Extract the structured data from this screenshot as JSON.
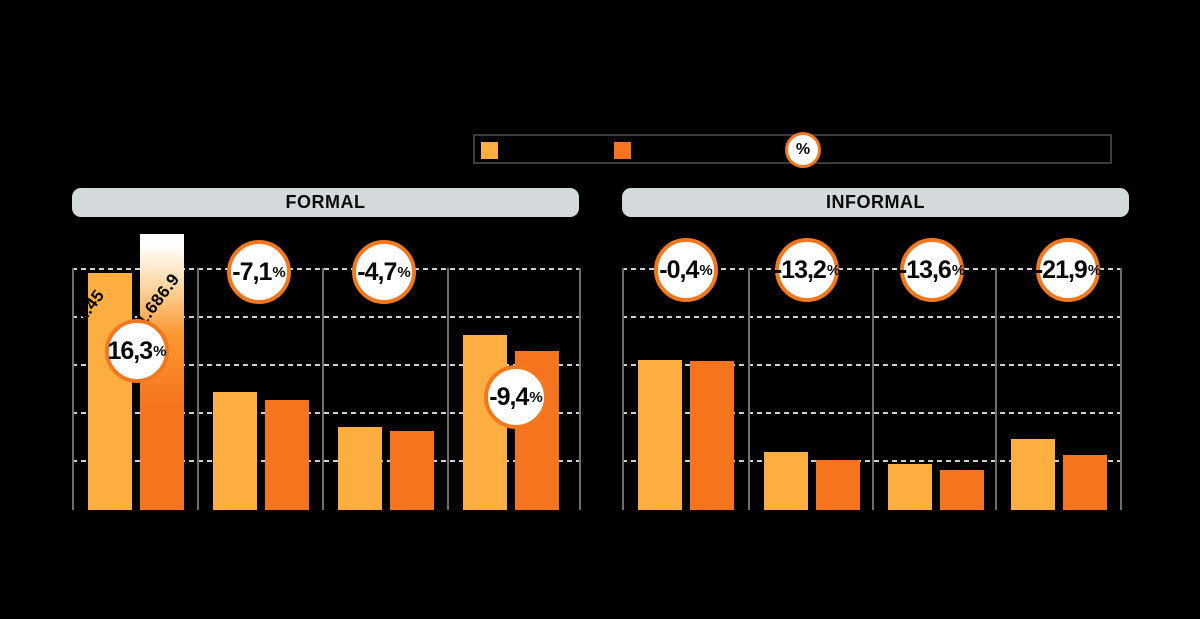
{
  "page": {
    "background": "#000000"
  },
  "legend": {
    "percent_symbol": "%",
    "swatches": [
      {
        "name": "series-1-light",
        "color": "#FDAE40"
      },
      {
        "name": "series-2-dark",
        "color": "#F6741E"
      }
    ]
  },
  "sections": [
    {
      "title": "FORMAL"
    },
    {
      "title": "INFORMAL"
    }
  ],
  "colors": {
    "light_bar": "#FDAE40",
    "dark_bar": "#F6741E",
    "badge_border": "#F1781F",
    "header_bg": "#D4DADB",
    "gridline": "#CCD0D0",
    "separator": "#6E6E6E",
    "legend_border": "#3B3B3B"
  },
  "chart_data": [
    {
      "type": "bar",
      "section": "FORMAL",
      "categories": [
        "",
        "",
        "",
        ""
      ],
      "series": [
        {
          "name": "light-orange",
          "values": [
            1450,
            722,
            508,
            1071
          ]
        },
        {
          "name": "dark-orange",
          "values": [
            1686.9,
            671,
            484,
            970
          ]
        }
      ],
      "change_badges": [
        "16,3%",
        "-7,1%",
        "-4,7%",
        "-9,4%"
      ],
      "bar_value_labels": [
        "1.45",
        "1.686.9"
      ],
      "ylim": [
        0,
        1480
      ],
      "grid": "dotted-horizontal",
      "note_values_estimated_from_gridlines": true
    },
    {
      "type": "bar",
      "section": "INFORMAL",
      "categories": [
        "",
        "",
        "",
        ""
      ],
      "series": [
        {
          "name": "light-orange",
          "values": [
            918,
            355,
            281,
            434
          ]
        },
        {
          "name": "dark-orange",
          "values": [
            914,
            308,
            243,
            339
          ]
        }
      ],
      "change_badges": [
        "-0,4%",
        "-13,2%",
        "-13,6%",
        "-21,9%"
      ],
      "bar_value_labels": [],
      "ylim": [
        0,
        1480
      ],
      "grid": "dotted-horizontal",
      "note_values_estimated_from_gridlines": true
    }
  ]
}
